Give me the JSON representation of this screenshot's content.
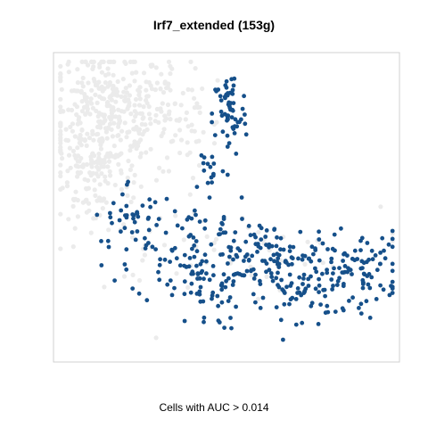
{
  "chart_data": {
    "type": "scatter",
    "title": "Irf7_extended (153g)",
    "subtitle": "Cells with AUC > 0.014",
    "xlabel": "",
    "ylabel": "",
    "xlim": [
      0,
      1
    ],
    "ylim": [
      0,
      1
    ],
    "grid": false,
    "legend": "none",
    "series": [
      {
        "color": "#ebebeb",
        "clusters": [
          {
            "cx": 0.15,
            "cy": 0.78,
            "sx": 0.09,
            "sy": 0.12,
            "n": 380
          },
          {
            "cx": 0.1,
            "cy": 0.55,
            "sx": 0.04,
            "sy": 0.08,
            "n": 60
          },
          {
            "cx": 0.33,
            "cy": 0.87,
            "sx": 0.06,
            "sy": 0.06,
            "n": 50
          },
          {
            "cx": 0.4,
            "cy": 0.74,
            "sx": 0.05,
            "sy": 0.06,
            "n": 30
          },
          {
            "cx": 0.44,
            "cy": 0.36,
            "sx": 0.25,
            "sy": 0.07,
            "n": 60
          }
        ]
      },
      {
        "color": "#16508a",
        "clusters": [
          {
            "cx": 0.51,
            "cy": 0.8,
            "sx": 0.025,
            "sy": 0.07,
            "n": 60
          },
          {
            "cx": 0.45,
            "cy": 0.63,
            "sx": 0.025,
            "sy": 0.04,
            "n": 15
          },
          {
            "cx": 0.22,
            "cy": 0.47,
            "sx": 0.05,
            "sy": 0.06,
            "n": 25
          },
          {
            "cx": 0.4,
            "cy": 0.37,
            "sx": 0.09,
            "sy": 0.09,
            "n": 90
          },
          {
            "cx": 0.44,
            "cy": 0.22,
            "sx": 0.05,
            "sy": 0.06,
            "n": 40
          },
          {
            "cx": 0.7,
            "cy": 0.25,
            "sx": 0.08,
            "sy": 0.08,
            "n": 95
          },
          {
            "cx": 0.88,
            "cy": 0.3,
            "sx": 0.07,
            "sy": 0.06,
            "n": 90
          },
          {
            "cx": 0.62,
            "cy": 0.35,
            "sx": 0.08,
            "sy": 0.05,
            "n": 60
          },
          {
            "cx": 0.28,
            "cy": 0.4,
            "sx": 0.05,
            "sy": 0.05,
            "n": 20
          }
        ]
      }
    ]
  }
}
